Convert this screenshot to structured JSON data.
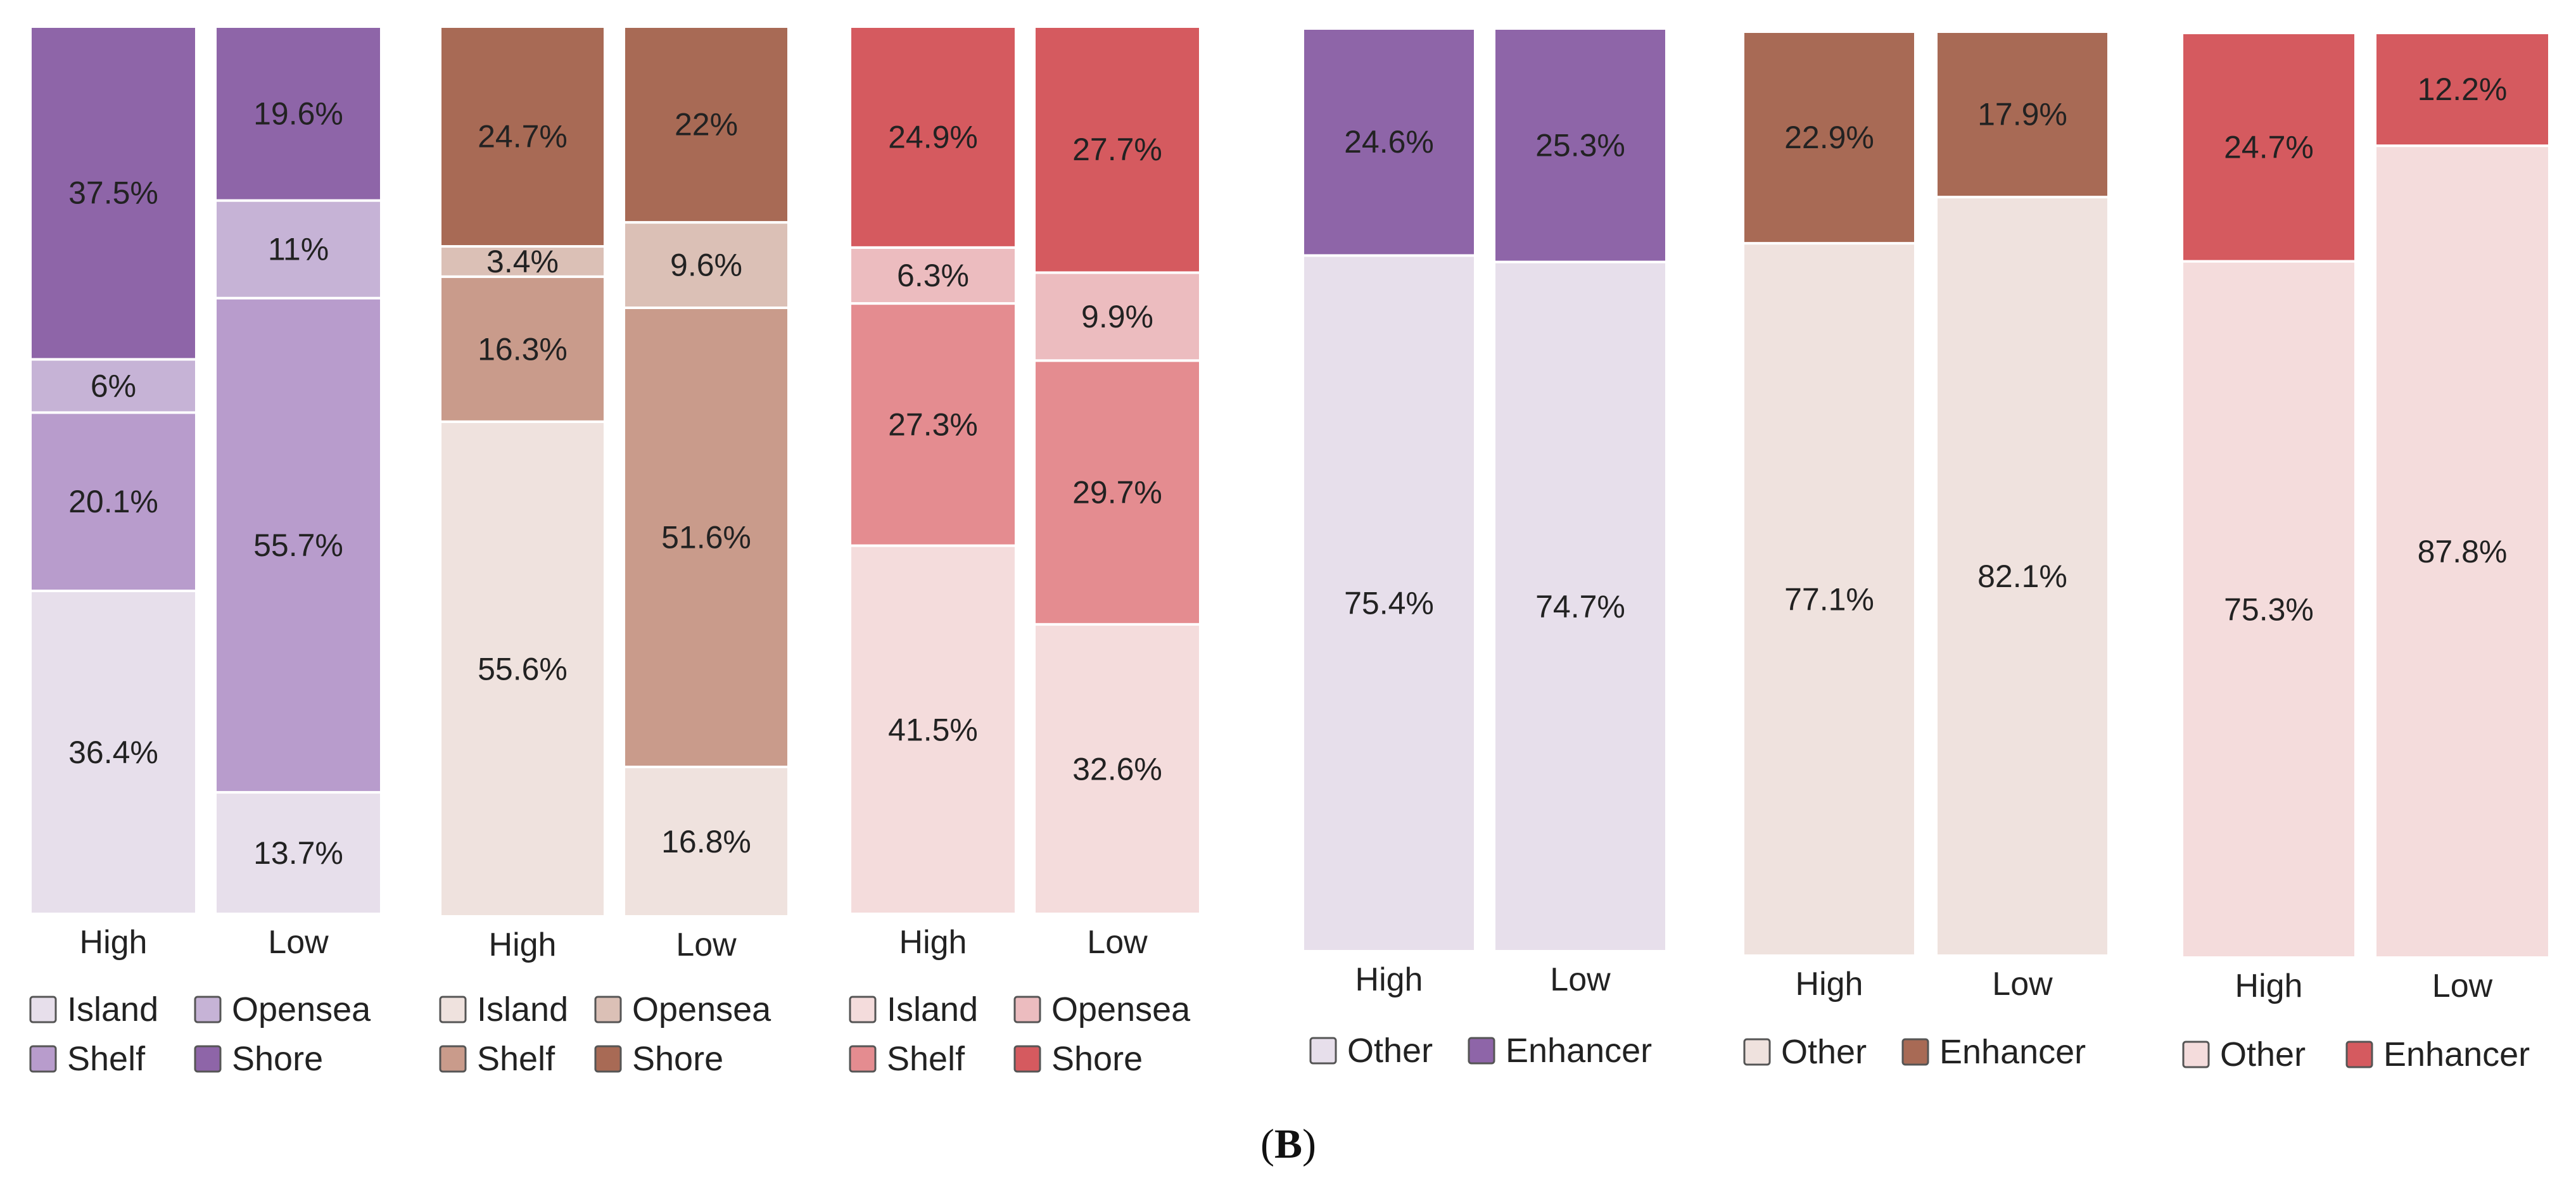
{
  "caption": {
    "open": "(",
    "letter": "B",
    "close": ")"
  },
  "colors": {
    "purple": {
      "Island": "#e7dfeb",
      "Opensea": "#c6b3d6",
      "Shelf": "#b89ccc",
      "Shore": "#8e65a8",
      "Other": "#e7dfeb",
      "Enhancer": "#8e65a8"
    },
    "brown": {
      "Island": "#efe2de",
      "Opensea": "#dbc0b6",
      "Shelf": "#c99b8b",
      "Shore": "#a86a55",
      "Other": "#efe2de",
      "Enhancer": "#a86a55"
    },
    "red": {
      "Island": "#f4dcdc",
      "Opensea": "#ecbcbf",
      "Shelf": "#e48c90",
      "Shore": "#d55a5f",
      "Other": "#f4dcdc",
      "Enhancer": "#d55a5f"
    }
  },
  "chart_data": [
    {
      "type": "bar",
      "stacked": true,
      "palette": "purple",
      "categories": [
        "High",
        "Low"
      ],
      "series": [
        {
          "name": "Island",
          "values": [
            36.4,
            13.7
          ],
          "labels": [
            "36.4%",
            "13.7%"
          ]
        },
        {
          "name": "Shelf",
          "values": [
            20.1,
            55.7
          ],
          "labels": [
            "20.1%",
            "55.7%"
          ]
        },
        {
          "name": "Opensea",
          "values": [
            6.0,
            11.0
          ],
          "labels": [
            "6%",
            "11%"
          ]
        },
        {
          "name": "Shore",
          "values": [
            37.5,
            19.6
          ],
          "labels": [
            "37.5%",
            "19.6%"
          ]
        }
      ],
      "legend": [
        [
          "Island",
          "Opensea"
        ],
        [
          "Shelf",
          "Shore"
        ]
      ]
    },
    {
      "type": "bar",
      "stacked": true,
      "palette": "brown",
      "categories": [
        "High",
        "Low"
      ],
      "series": [
        {
          "name": "Island",
          "values": [
            55.6,
            16.8
          ],
          "labels": [
            "55.6%",
            "16.8%"
          ]
        },
        {
          "name": "Shelf",
          "values": [
            16.3,
            51.6
          ],
          "labels": [
            "16.3%",
            "51.6%"
          ]
        },
        {
          "name": "Opensea",
          "values": [
            3.4,
            9.6
          ],
          "labels": [
            "3.4%",
            "9.6%"
          ]
        },
        {
          "name": "Shore",
          "values": [
            24.7,
            22.0
          ],
          "labels": [
            "24.7%",
            "22%"
          ]
        }
      ],
      "legend": [
        [
          "Island",
          "Opensea"
        ],
        [
          "Shelf",
          "Shore"
        ]
      ]
    },
    {
      "type": "bar",
      "stacked": true,
      "palette": "red",
      "categories": [
        "High",
        "Low"
      ],
      "series": [
        {
          "name": "Island",
          "values": [
            41.5,
            32.6
          ],
          "labels": [
            "41.5%",
            "32.6%"
          ]
        },
        {
          "name": "Shelf",
          "values": [
            27.3,
            29.7
          ],
          "labels": [
            "27.3%",
            "29.7%"
          ]
        },
        {
          "name": "Opensea",
          "values": [
            6.3,
            9.9
          ],
          "labels": [
            "6.3%",
            "9.9%"
          ]
        },
        {
          "name": "Shore",
          "values": [
            24.9,
            27.7
          ],
          "labels": [
            "24.9%",
            "27.7%"
          ]
        }
      ],
      "legend": [
        [
          "Island",
          "Opensea"
        ],
        [
          "Shelf",
          "Shore"
        ]
      ]
    },
    {
      "type": "bar",
      "stacked": true,
      "palette": "purple",
      "categories": [
        "High",
        "Low"
      ],
      "series": [
        {
          "name": "Other",
          "values": [
            75.4,
            74.7
          ],
          "labels": [
            "75.4%",
            "74.7%"
          ]
        },
        {
          "name": "Enhancer",
          "values": [
            24.6,
            25.3
          ],
          "labels": [
            "24.6%",
            "25.3%"
          ]
        }
      ],
      "legend": [
        [
          "Other",
          "Enhancer"
        ]
      ]
    },
    {
      "type": "bar",
      "stacked": true,
      "palette": "brown",
      "categories": [
        "High",
        "Low"
      ],
      "series": [
        {
          "name": "Other",
          "values": [
            77.1,
            82.1
          ],
          "labels": [
            "77.1%",
            "82.1%"
          ]
        },
        {
          "name": "Enhancer",
          "values": [
            22.9,
            17.9
          ],
          "labels": [
            "22.9%",
            "17.9%"
          ]
        }
      ],
      "legend": [
        [
          "Other",
          "Enhancer"
        ]
      ]
    },
    {
      "type": "bar",
      "stacked": true,
      "palette": "red",
      "categories": [
        "High",
        "Low"
      ],
      "series": [
        {
          "name": "Other",
          "values": [
            75.3,
            87.8
          ],
          "labels": [
            "75.3%",
            "87.8%"
          ]
        },
        {
          "name": "Enhancer",
          "values": [
            24.7,
            12.2
          ],
          "labels": [
            "24.7%",
            "12.2%"
          ]
        }
      ],
      "legend": [
        [
          "Other",
          "Enhancer"
        ]
      ]
    }
  ]
}
